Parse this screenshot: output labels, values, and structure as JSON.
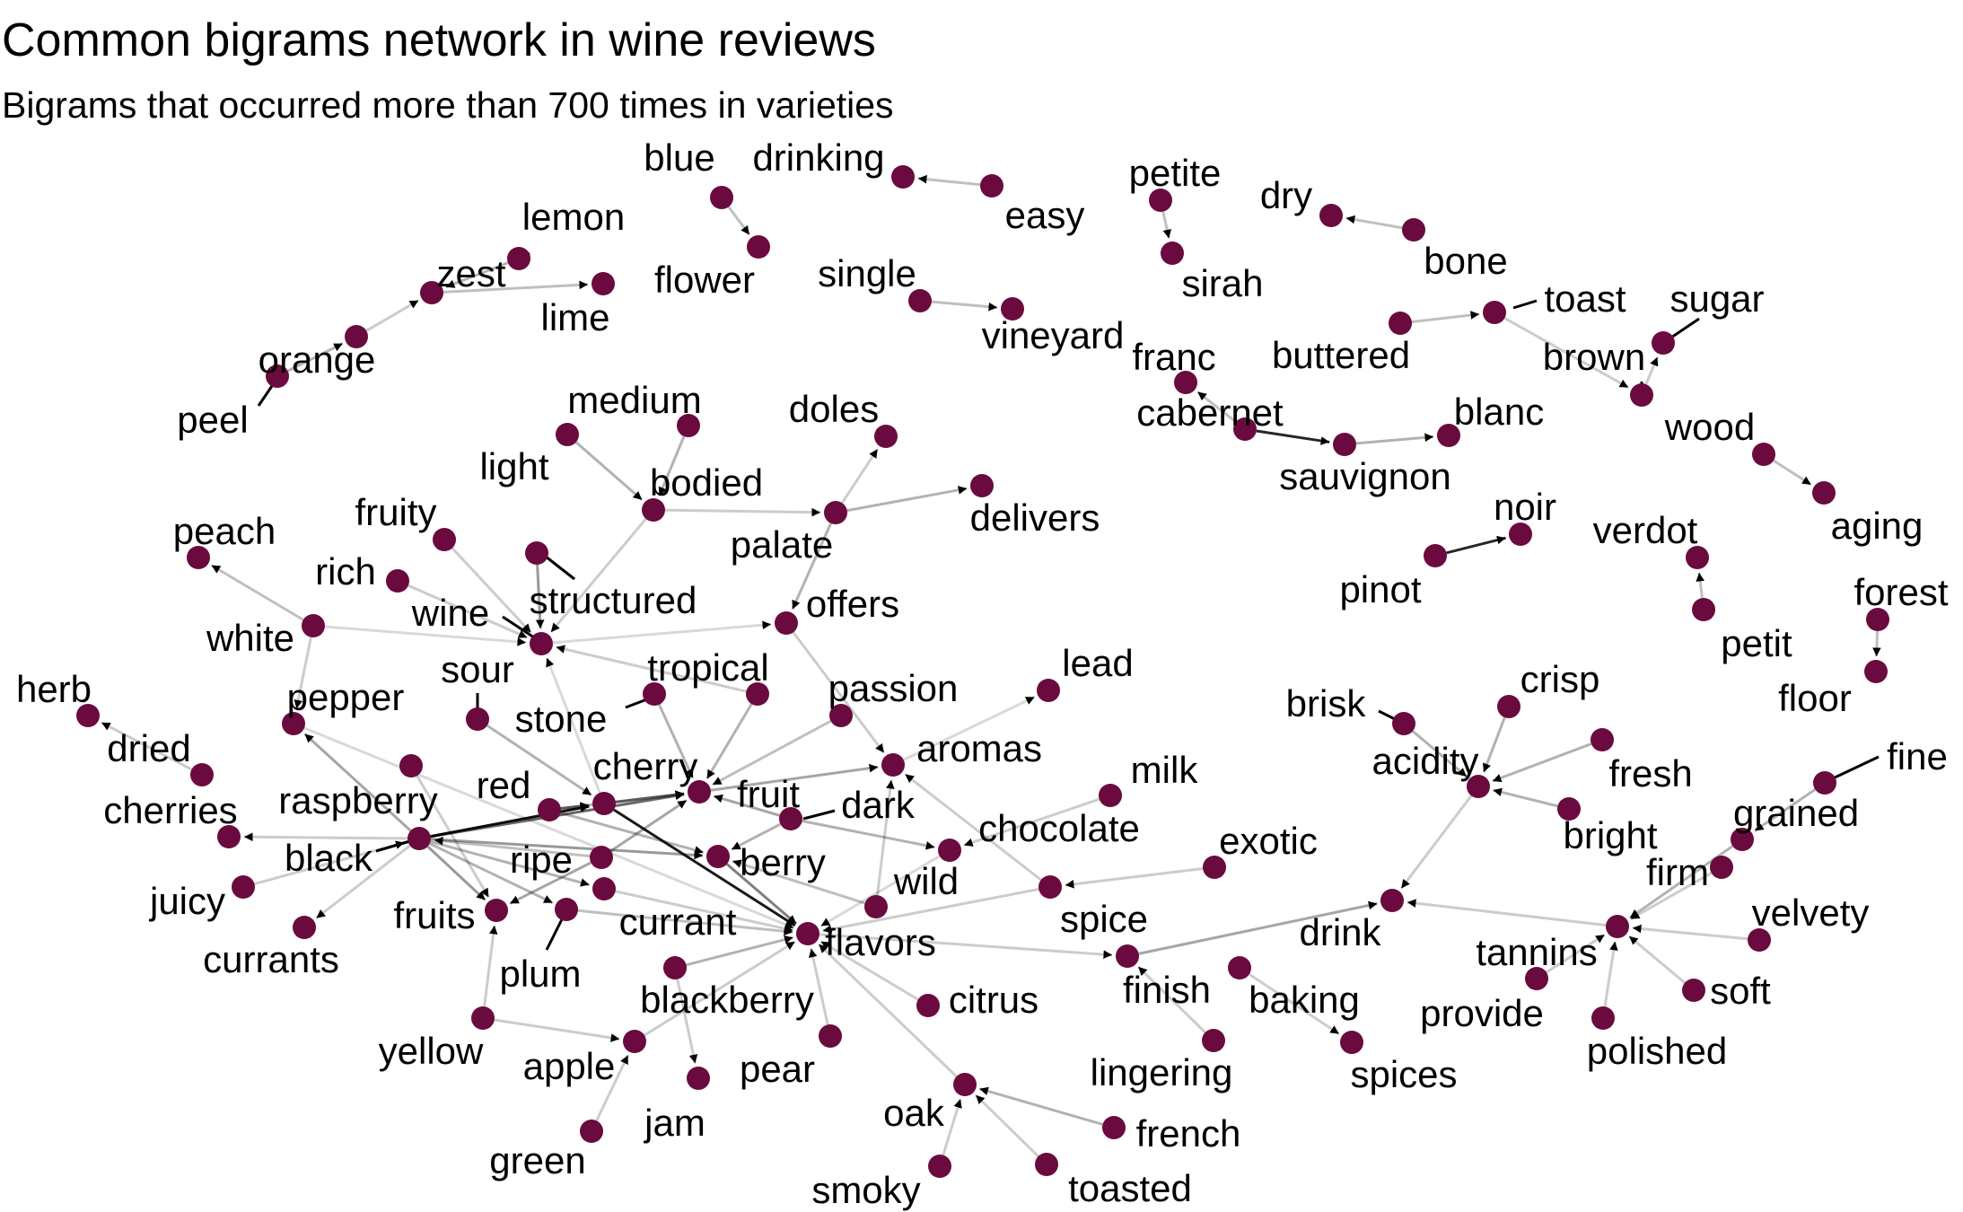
{
  "title": "Common bigrams network in wine reviews",
  "subtitle": "Bigrams that occurred more than 700 times in varieties",
  "colors": {
    "node": "#6b0a3e",
    "edge": "#000000",
    "text": "#000000",
    "background": "#ffffff"
  },
  "nodes": [
    {
      "id": "blue",
      "label": "blue"
    },
    {
      "id": "flower",
      "label": "flower"
    },
    {
      "id": "drinking",
      "label": "drinking"
    },
    {
      "id": "easy",
      "label": "easy"
    },
    {
      "id": "petite",
      "label": "petite"
    },
    {
      "id": "sirah",
      "label": "sirah"
    },
    {
      "id": "dry",
      "label": "dry"
    },
    {
      "id": "bone",
      "label": "bone"
    },
    {
      "id": "lemon",
      "label": "lemon"
    },
    {
      "id": "zest",
      "label": "zest"
    },
    {
      "id": "lime",
      "label": "lime"
    },
    {
      "id": "orange",
      "label": "orange"
    },
    {
      "id": "peel",
      "label": "peel"
    },
    {
      "id": "single",
      "label": "single"
    },
    {
      "id": "vineyard",
      "label": "vineyard"
    },
    {
      "id": "toast",
      "label": "toast"
    },
    {
      "id": "buttered",
      "label": "buttered"
    },
    {
      "id": "sugar",
      "label": "sugar"
    },
    {
      "id": "brown",
      "label": "brown"
    },
    {
      "id": "franc",
      "label": "franc"
    },
    {
      "id": "cabernet",
      "label": "cabernet"
    },
    {
      "id": "sauvignon",
      "label": "sauvignon"
    },
    {
      "id": "blanc",
      "label": "blanc"
    },
    {
      "id": "wood",
      "label": "wood"
    },
    {
      "id": "aging",
      "label": "aging"
    },
    {
      "id": "medium",
      "label": "medium"
    },
    {
      "id": "light",
      "label": "light"
    },
    {
      "id": "bodied",
      "label": "bodied"
    },
    {
      "id": "doles",
      "label": "doles"
    },
    {
      "id": "delivers",
      "label": "delivers"
    },
    {
      "id": "palate",
      "label": "palate"
    },
    {
      "id": "noir",
      "label": "noir"
    },
    {
      "id": "pinot",
      "label": "pinot"
    },
    {
      "id": "verdot",
      "label": "verdot"
    },
    {
      "id": "petit",
      "label": "petit"
    },
    {
      "id": "forest",
      "label": "forest"
    },
    {
      "id": "floor",
      "label": "floor"
    },
    {
      "id": "peach",
      "label": "peach"
    },
    {
      "id": "fruity",
      "label": "fruity"
    },
    {
      "id": "rich",
      "label": "rich"
    },
    {
      "id": "structured",
      "label": "structured"
    },
    {
      "id": "wine",
      "label": "wine"
    },
    {
      "id": "white",
      "label": "white"
    },
    {
      "id": "offers",
      "label": "offers"
    },
    {
      "id": "herb",
      "label": "herb"
    },
    {
      "id": "pepper",
      "label": "pepper"
    },
    {
      "id": "sour",
      "label": "sour"
    },
    {
      "id": "tropical",
      "label": "tropical"
    },
    {
      "id": "stone",
      "label": "stone"
    },
    {
      "id": "passion",
      "label": "passion"
    },
    {
      "id": "lead",
      "label": "lead"
    },
    {
      "id": "brisk",
      "label": "brisk"
    },
    {
      "id": "crisp",
      "label": "crisp"
    },
    {
      "id": "dried",
      "label": "dried"
    },
    {
      "id": "cherries",
      "label": "cherries"
    },
    {
      "id": "raspberry",
      "label": "raspberry"
    },
    {
      "id": "red",
      "label": "red"
    },
    {
      "id": "cherry",
      "label": "cherry"
    },
    {
      "id": "fruit",
      "label": "fruit"
    },
    {
      "id": "aromas",
      "label": "aromas"
    },
    {
      "id": "acidity",
      "label": "acidity"
    },
    {
      "id": "fresh",
      "label": "fresh"
    },
    {
      "id": "fine",
      "label": "fine"
    },
    {
      "id": "black",
      "label": "black"
    },
    {
      "id": "dark",
      "label": "dark"
    },
    {
      "id": "milk",
      "label": "milk"
    },
    {
      "id": "chocolate",
      "label": "chocolate"
    },
    {
      "id": "bright",
      "label": "bright"
    },
    {
      "id": "grained",
      "label": "grained"
    },
    {
      "id": "juicy",
      "label": "juicy"
    },
    {
      "id": "ripe",
      "label": "ripe"
    },
    {
      "id": "berry",
      "label": "berry"
    },
    {
      "id": "exotic",
      "label": "exotic"
    },
    {
      "id": "firm",
      "label": "firm"
    },
    {
      "id": "fruits",
      "label": "fruits"
    },
    {
      "id": "wild",
      "label": "wild"
    },
    {
      "id": "currant",
      "label": "currant"
    },
    {
      "id": "spice",
      "label": "spice"
    },
    {
      "id": "drink",
      "label": "drink"
    },
    {
      "id": "velvety",
      "label": "velvety"
    },
    {
      "id": "currants",
      "label": "currants"
    },
    {
      "id": "flavors",
      "label": "flavors"
    },
    {
      "id": "tannins",
      "label": "tannins"
    },
    {
      "id": "plum",
      "label": "plum"
    },
    {
      "id": "finish",
      "label": "finish"
    },
    {
      "id": "blackberry",
      "label": "blackberry"
    },
    {
      "id": "citrus",
      "label": "citrus"
    },
    {
      "id": "baking",
      "label": "baking"
    },
    {
      "id": "soft",
      "label": "soft"
    },
    {
      "id": "yellow",
      "label": "yellow"
    },
    {
      "id": "provide",
      "label": "provide"
    },
    {
      "id": "apple",
      "label": "apple"
    },
    {
      "id": "pear",
      "label": "pear"
    },
    {
      "id": "lingering",
      "label": "lingering"
    },
    {
      "id": "spices",
      "label": "spices"
    },
    {
      "id": "polished",
      "label": "polished"
    },
    {
      "id": "oak",
      "label": "oak"
    },
    {
      "id": "jam",
      "label": "jam"
    },
    {
      "id": "french",
      "label": "french"
    },
    {
      "id": "green",
      "label": "green"
    },
    {
      "id": "smoky",
      "label": "smoky"
    },
    {
      "id": "toasted",
      "label": "toasted"
    }
  ],
  "edges": [
    {
      "from": "blue",
      "to": "flower",
      "weight": 0.25
    },
    {
      "from": "easy",
      "to": "drinking",
      "weight": 0.25
    },
    {
      "from": "petite",
      "to": "sirah",
      "weight": 0.25
    },
    {
      "from": "bone",
      "to": "dry",
      "weight": 0.25
    },
    {
      "from": "lemon",
      "to": "zest",
      "weight": 0.3
    },
    {
      "from": "zest",
      "to": "lime",
      "weight": 0.25
    },
    {
      "from": "orange",
      "to": "zest",
      "weight": 0.2
    },
    {
      "from": "peel",
      "to": "orange",
      "weight": 0.3
    },
    {
      "from": "single",
      "to": "vineyard",
      "weight": 0.25
    },
    {
      "from": "buttered",
      "to": "toast",
      "weight": 0.25
    },
    {
      "from": "toast",
      "to": "brown",
      "weight": 0.2
    },
    {
      "from": "brown",
      "to": "sugar",
      "weight": 0.2
    },
    {
      "from": "cabernet",
      "to": "franc",
      "weight": 0.25
    },
    {
      "from": "cabernet",
      "to": "sauvignon",
      "weight": 0.85
    },
    {
      "from": "sauvignon",
      "to": "blanc",
      "weight": 0.3
    },
    {
      "from": "wood",
      "to": "aging",
      "weight": 0.25
    },
    {
      "from": "medium",
      "to": "bodied",
      "weight": 0.3
    },
    {
      "from": "light",
      "to": "bodied",
      "weight": 0.3
    },
    {
      "from": "bodied",
      "to": "palate",
      "weight": 0.2
    },
    {
      "from": "bodied",
      "to": "wine",
      "weight": 0.2
    },
    {
      "from": "palate",
      "to": "doles",
      "weight": 0.2
    },
    {
      "from": "palate",
      "to": "delivers",
      "weight": 0.3
    },
    {
      "from": "palate",
      "to": "offers",
      "weight": 0.3
    },
    {
      "from": "pinot",
      "to": "noir",
      "weight": 0.85
    },
    {
      "from": "petit",
      "to": "verdot",
      "weight": 0.25
    },
    {
      "from": "forest",
      "to": "floor",
      "weight": 0.25
    },
    {
      "from": "white",
      "to": "peach",
      "weight": 0.25
    },
    {
      "from": "white",
      "to": "wine",
      "weight": 0.15
    },
    {
      "from": "white",
      "to": "pepper",
      "weight": 0.2
    },
    {
      "from": "fruity",
      "to": "wine",
      "weight": 0.2
    },
    {
      "from": "rich",
      "to": "wine",
      "weight": 0.2
    },
    {
      "from": "structured",
      "to": "wine",
      "weight": 0.4
    },
    {
      "from": "wine",
      "to": "offers",
      "weight": 0.15
    },
    {
      "from": "cherry",
      "to": "wine",
      "weight": 0.15
    },
    {
      "from": "offers",
      "to": "aromas",
      "weight": 0.2
    },
    {
      "from": "dried",
      "to": "herb",
      "weight": 0.2
    },
    {
      "from": "black",
      "to": "pepper",
      "weight": 0.35
    },
    {
      "from": "sour",
      "to": "cherry",
      "weight": 0.3
    },
    {
      "from": "tropical",
      "to": "fruit",
      "weight": 0.3
    },
    {
      "from": "stone",
      "to": "fruit",
      "weight": 0.3
    },
    {
      "from": "passion",
      "to": "fruit",
      "weight": 0.25
    },
    {
      "from": "aromas",
      "to": "lead",
      "weight": 0.15
    },
    {
      "from": "brisk",
      "to": "acidity",
      "weight": 0.3
    },
    {
      "from": "crisp",
      "to": "acidity",
      "weight": 0.3
    },
    {
      "from": "fresh",
      "to": "acidity",
      "weight": 0.3
    },
    {
      "from": "bright",
      "to": "acidity",
      "weight": 0.3
    },
    {
      "from": "acidity",
      "to": "drink",
      "weight": 0.2
    },
    {
      "from": "black",
      "to": "cherries",
      "weight": 0.2
    },
    {
      "from": "black",
      "to": "cherry",
      "weight": 0.95
    },
    {
      "from": "red",
      "to": "cherry",
      "weight": 0.5
    },
    {
      "from": "cherry",
      "to": "fruit",
      "weight": 0.5
    },
    {
      "from": "raspberry",
      "to": "fruits",
      "weight": 0.2
    },
    {
      "from": "cherry",
      "to": "flavors",
      "weight": 0.9
    },
    {
      "from": "fruit",
      "to": "aromas",
      "weight": 0.35
    },
    {
      "from": "fine",
      "to": "grained",
      "weight": 0.3
    },
    {
      "from": "grained",
      "to": "tannins",
      "weight": 0.3
    },
    {
      "from": "black",
      "to": "fruit",
      "weight": 0.6
    },
    {
      "from": "black",
      "to": "fruits",
      "weight": 0.4
    },
    {
      "from": "black",
      "to": "currants",
      "weight": 0.2
    },
    {
      "from": "black",
      "to": "berry",
      "weight": 0.4
    },
    {
      "from": "black",
      "to": "currant",
      "weight": 0.3
    },
    {
      "from": "black",
      "to": "plum",
      "weight": 0.3
    },
    {
      "from": "dark",
      "to": "fruit",
      "weight": 0.35
    },
    {
      "from": "dark",
      "to": "berry",
      "weight": 0.3
    },
    {
      "from": "dark",
      "to": "chocolate",
      "weight": 0.3
    },
    {
      "from": "milk",
      "to": "chocolate",
      "weight": 0.2
    },
    {
      "from": "chocolate",
      "to": "flavors",
      "weight": 0.15
    },
    {
      "from": "juicy",
      "to": "black",
      "weight": 0.2
    },
    {
      "from": "ripe",
      "to": "fruit",
      "weight": 0.35
    },
    {
      "from": "ripe",
      "to": "fruits",
      "weight": 0.35
    },
    {
      "from": "ripe",
      "to": "black",
      "weight": 0.25
    },
    {
      "from": "berry",
      "to": "flavors",
      "weight": 0.5
    },
    {
      "from": "exotic",
      "to": "spice",
      "weight": 0.2
    },
    {
      "from": "firm",
      "to": "tannins",
      "weight": 0.2
    },
    {
      "from": "velvety",
      "to": "tannins",
      "weight": 0.2
    },
    {
      "from": "soft",
      "to": "tannins",
      "weight": 0.2
    },
    {
      "from": "polished",
      "to": "tannins",
      "weight": 0.2
    },
    {
      "from": "provide",
      "to": "tannins",
      "weight": 0.2
    },
    {
      "from": "tannins",
      "to": "drink",
      "weight": 0.2
    },
    {
      "from": "finish",
      "to": "drink",
      "weight": 0.35
    },
    {
      "from": "wild",
      "to": "berry",
      "weight": 0.25
    },
    {
      "from": "wild",
      "to": "aromas",
      "weight": 0.2
    },
    {
      "from": "currant",
      "to": "flavors",
      "weight": 0.2
    },
    {
      "from": "spice",
      "to": "flavors",
      "weight": 0.2
    },
    {
      "from": "spice",
      "to": "aromas",
      "weight": 0.2
    },
    {
      "from": "baking",
      "to": "spices",
      "weight": 0.2
    },
    {
      "from": "flavors",
      "to": "finish",
      "weight": 0.2
    },
    {
      "from": "lingering",
      "to": "finish",
      "weight": 0.2
    },
    {
      "from": "plum",
      "to": "flavors",
      "weight": 0.25
    },
    {
      "from": "blackberry",
      "to": "flavors",
      "weight": 0.3
    },
    {
      "from": "blackberry",
      "to": "jam",
      "weight": 0.2
    },
    {
      "from": "citrus",
      "to": "flavors",
      "weight": 0.2
    },
    {
      "from": "pear",
      "to": "flavors",
      "weight": 0.2
    },
    {
      "from": "yellow",
      "to": "apple",
      "weight": 0.2
    },
    {
      "from": "green",
      "to": "apple",
      "weight": 0.2
    },
    {
      "from": "yellow",
      "to": "fruits",
      "weight": 0.2
    },
    {
      "from": "apple",
      "to": "flavors",
      "weight": 0.2
    },
    {
      "from": "oak",
      "to": "flavors",
      "weight": 0.2
    },
    {
      "from": "french",
      "to": "oak",
      "weight": 0.3
    },
    {
      "from": "smoky",
      "to": "oak",
      "weight": 0.2
    },
    {
      "from": "toasted",
      "to": "oak",
      "weight": 0.2
    },
    {
      "from": "red",
      "to": "fruit",
      "weight": 0.3
    },
    {
      "from": "red",
      "to": "berry",
      "weight": 0.3
    },
    {
      "from": "stone",
      "to": "wine",
      "weight": 0.2
    },
    {
      "from": "pepper",
      "to": "flavors",
      "weight": 0.15
    }
  ]
}
